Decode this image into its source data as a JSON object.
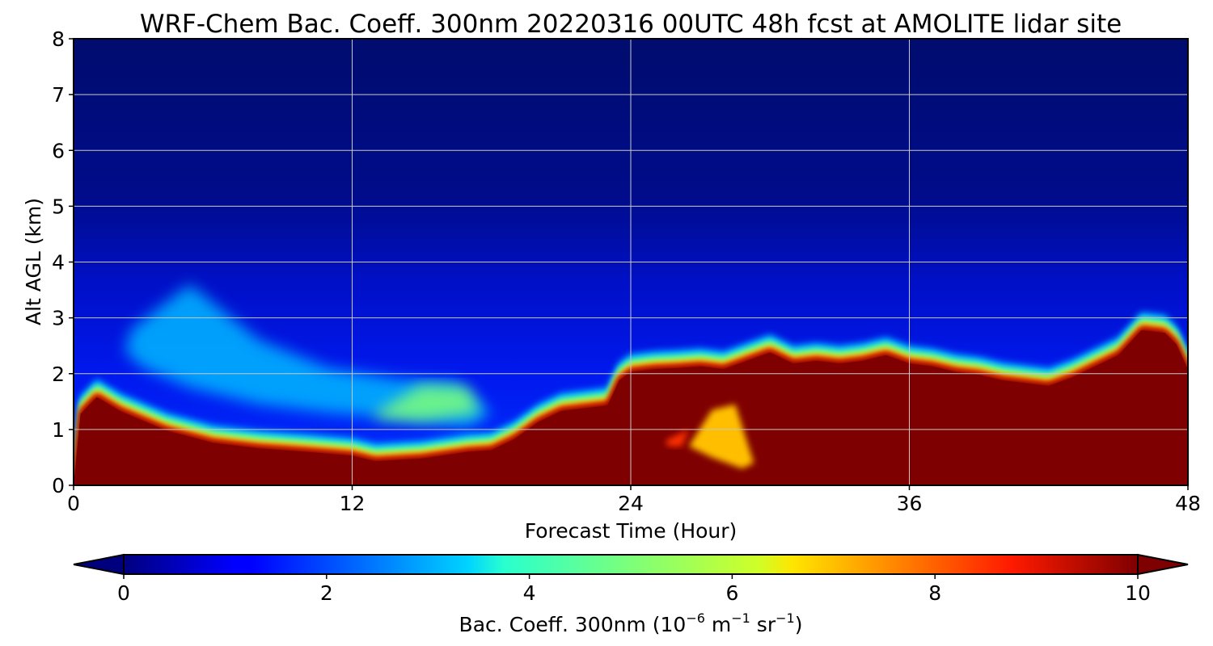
{
  "chart_data": {
    "type": "heatmap",
    "title": "WRF-Chem Bac. Coeff. 300nm  20220316 00UTC 48h fcst at AMOLITE lidar site",
    "xlabel": "Forecast Time (Hour)",
    "ylabel": "Alt AGL (km)",
    "xlim": [
      0,
      48
    ],
    "ylim": [
      0,
      8
    ],
    "x_ticks": [
      "0",
      "12",
      "24",
      "36",
      "48"
    ],
    "y_ticks": [
      "0",
      "1",
      "2",
      "3",
      "4",
      "5",
      "6",
      "7",
      "8"
    ],
    "grid": true,
    "colormap": "jet",
    "colorbar": {
      "label_prefix": "Bac. Coeff. 300nm  (10",
      "label_exp1": "−6",
      "label_mid": " m",
      "label_exp2": "−1",
      "label_mid2": " sr",
      "label_exp3": "−1",
      "label_suffix": ")",
      "range": [
        0,
        10
      ],
      "ticks": [
        "0",
        "2",
        "4",
        "6",
        "8",
        "10"
      ],
      "extend": "both"
    },
    "saturated_layer_top_km": {
      "x": [
        0,
        0.3,
        1,
        2,
        4,
        6,
        8,
        10,
        12,
        13,
        15,
        17,
        18,
        19,
        20,
        21,
        22,
        23,
        23.5,
        24,
        25,
        26,
        27,
        28,
        29,
        30,
        31,
        32,
        33,
        34,
        35,
        36,
        37,
        38,
        39,
        40,
        41,
        42,
        43,
        44,
        45,
        46,
        47,
        47.5,
        48
      ],
      "y": [
        0,
        1.3,
        1.6,
        1.35,
        1.0,
        0.78,
        0.68,
        0.62,
        0.55,
        0.45,
        0.5,
        0.62,
        0.65,
        0.85,
        1.15,
        1.35,
        1.4,
        1.45,
        1.9,
        2.05,
        2.1,
        2.12,
        2.15,
        2.1,
        2.25,
        2.4,
        2.2,
        2.25,
        2.2,
        2.25,
        2.35,
        2.2,
        2.15,
        2.05,
        2.0,
        1.9,
        1.85,
        1.8,
        1.95,
        2.15,
        2.35,
        2.8,
        2.75,
        2.55,
        2.1
      ]
    },
    "lower_value_pockets": [
      {
        "x": [
          26.5,
          27.5,
          28.5,
          29.3,
          28.8,
          27.5
        ],
        "y": [
          0.7,
          1.35,
          1.45,
          0.4,
          0.3,
          0.5
        ],
        "value": 7
      },
      {
        "x": [
          25.5,
          26.5,
          26.2,
          25.6
        ],
        "y": [
          0.8,
          1.0,
          0.7,
          0.7
        ],
        "value": 8.5
      }
    ],
    "aerosol_plume": {
      "x": [
        2.5,
        5,
        8,
        11,
        14,
        16.5,
        18,
        17,
        14,
        11,
        8,
        5,
        3,
        2.2
      ],
      "y": [
        2.8,
        3.6,
        2.6,
        2.1,
        1.9,
        1.85,
        1.3,
        1.05,
        1.2,
        1.3,
        1.45,
        1.75,
        2.1,
        2.4
      ],
      "value": 3
    },
    "peak_core": {
      "x": [
        13,
        15,
        17,
        17.5,
        15,
        13
      ],
      "y": [
        1.3,
        1.8,
        1.75,
        1.3,
        1.15,
        1.2
      ],
      "value": 5
    }
  }
}
